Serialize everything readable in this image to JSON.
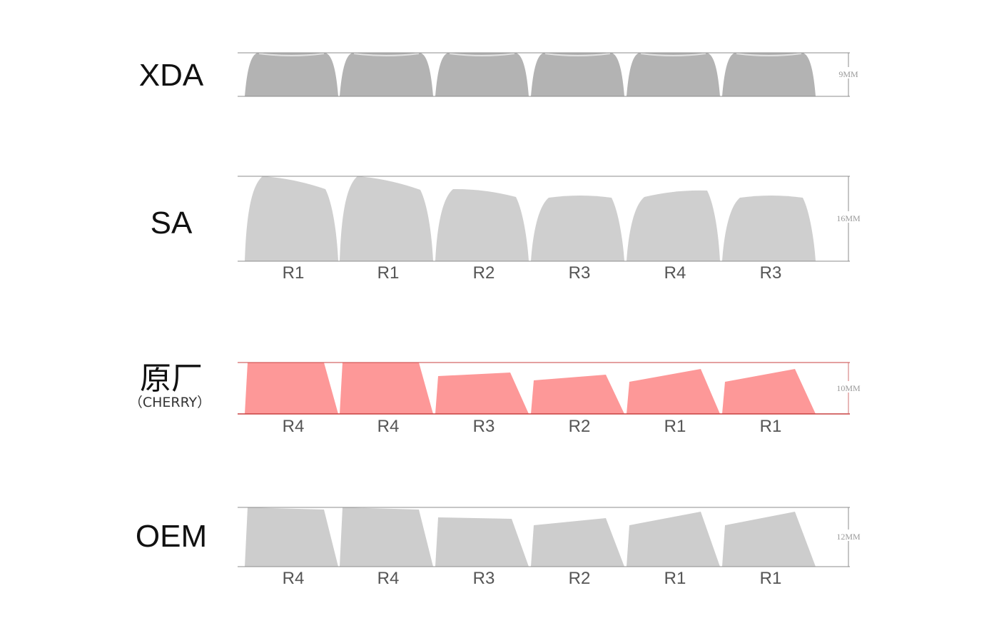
{
  "profiles": [
    {
      "id": "xda",
      "name": "XDA",
      "subtitle": "",
      "height_label": "9MM",
      "fill": "#b3b3b3",
      "shape": "cylindrical",
      "row_labels": []
    },
    {
      "id": "sa",
      "name": "SA",
      "subtitle": "",
      "height_label": "16MM",
      "fill": "#cfcfcf",
      "shape": "sculpted-round",
      "row_labels": [
        "R1",
        "R1",
        "R2",
        "R3",
        "R4",
        "R3"
      ]
    },
    {
      "id": "cherry",
      "name": "原厂",
      "subtitle": "（CHERRY）",
      "height_label": "10MM",
      "fill": "#fd9898",
      "line_color": "#c84040",
      "label_color": "#8b1414",
      "shape": "sculpted-angled",
      "row_labels": [
        "R4",
        "R4",
        "R3",
        "R2",
        "R1",
        "R1"
      ]
    },
    {
      "id": "oem",
      "name": "OEM",
      "subtitle": "",
      "height_label": "12MM",
      "fill": "#cdcdcd",
      "shape": "sculpted-angled",
      "row_labels": [
        "R4",
        "R4",
        "R3",
        "R2",
        "R1",
        "R1"
      ]
    }
  ]
}
